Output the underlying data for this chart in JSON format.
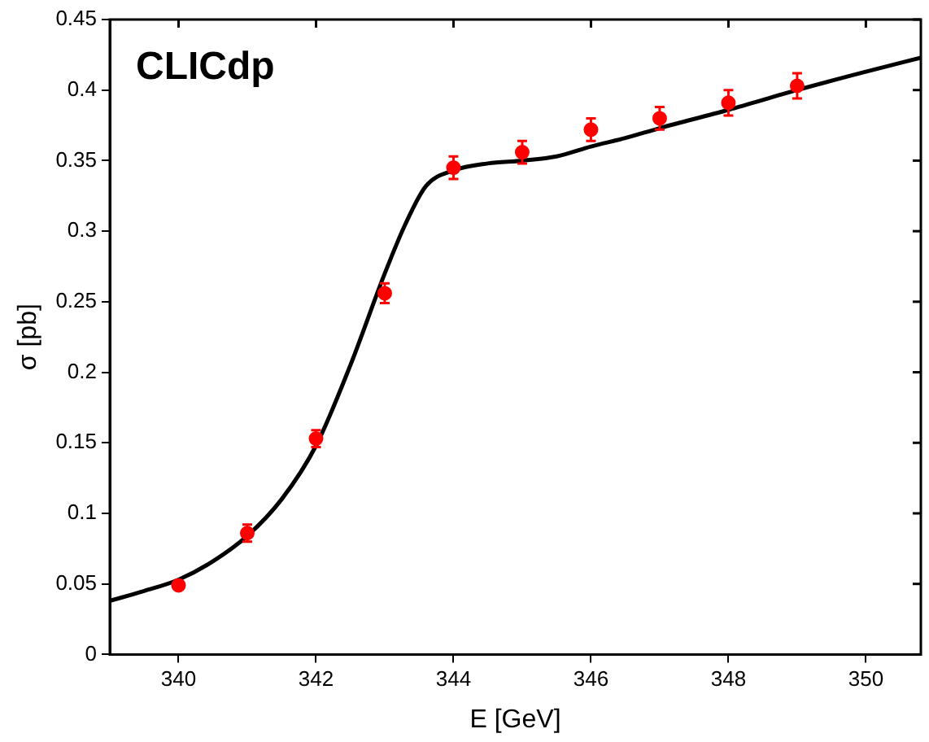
{
  "chart_data": {
    "type": "scatter",
    "xlabel": "E [GeV]",
    "ylabel": "σ [pb]",
    "annotations": [
      "CLICdp"
    ],
    "xlim": [
      339,
      350.8
    ],
    "xticks": [
      340,
      342,
      344,
      346,
      348,
      350
    ],
    "ylim": [
      0,
      0.45
    ],
    "yticks": [
      0,
      0.05,
      0.1,
      0.15,
      0.2,
      0.25,
      0.3,
      0.35,
      0.4,
      0.45
    ],
    "grid": false,
    "legend": false,
    "marker": "circle",
    "series": [
      {
        "color": "#ff0000",
        "x": [
          340,
          341,
          342,
          343,
          344,
          345,
          346,
          347,
          348,
          349
        ],
        "values": [
          0.049,
          0.086,
          0.153,
          0.256,
          0.345,
          0.356,
          0.372,
          0.38,
          0.391,
          0.403
        ],
        "errors": [
          null,
          0.006,
          0.006,
          0.007,
          0.008,
          0.008,
          0.008,
          0.008,
          0.009,
          0.009
        ]
      },
      {
        "type": "line",
        "color": "#000000",
        "line_style": "solid",
        "marker": "none",
        "x": [
          339,
          339.5,
          340,
          340.5,
          341,
          341.5,
          342,
          342.5,
          343,
          343.3,
          343.6,
          344,
          344.5,
          345,
          345.5,
          346,
          346.5,
          347,
          348,
          349,
          350,
          350.8
        ],
        "values": [
          0.038,
          0.045,
          0.053,
          0.066,
          0.084,
          0.11,
          0.148,
          0.205,
          0.27,
          0.305,
          0.332,
          0.343,
          0.348,
          0.35,
          0.353,
          0.36,
          0.366,
          0.373,
          0.386,
          0.4,
          0.413,
          0.423
        ]
      }
    ]
  }
}
